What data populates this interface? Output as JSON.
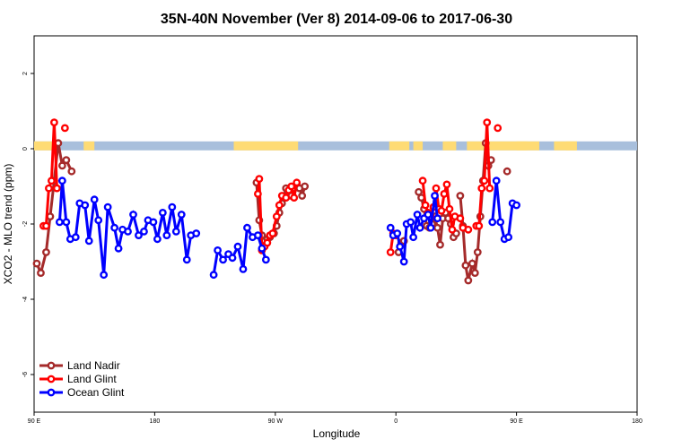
{
  "chart_data": {
    "type": "line",
    "title": "35N-40N November (Ver 8)   2014-09-06 to 2017-06-30",
    "xlabel": "Longitude",
    "ylabel": "XCO2 - MLO trend (ppm)",
    "xlim": [
      90,
      450
    ],
    "ylim": [
      -7,
      3
    ],
    "x_ticks": [
      {
        "value": 90,
        "label": "90 E"
      },
      {
        "value": 180,
        "label": "180"
      },
      {
        "value": 270,
        "label": "90 W"
      },
      {
        "value": 360,
        "label": "0"
      },
      {
        "value": 450,
        "label": "90 E"
      },
      {
        "value": 540,
        "label": "180"
      }
    ],
    "y_ticks": [
      {
        "value": 2,
        "label": "2"
      },
      {
        "value": 0,
        "label": "0"
      },
      {
        "value": -2,
        "label": "-2"
      },
      {
        "value": -4,
        "label": "-4"
      },
      {
        "value": -6,
        "label": "-6"
      }
    ],
    "legend_position": "bottom-left",
    "grid": false,
    "land_mask": {
      "y": 0.1,
      "ocean_color": "#a8bfdc",
      "land_color": "#fedb74",
      "land_ranges": [
        [
          90,
          107
        ],
        [
          127,
          135
        ],
        [
          239,
          287
        ],
        [
          355,
          370
        ],
        [
          373,
          380
        ],
        [
          395,
          405
        ],
        [
          413,
          458
        ],
        [
          478,
          495
        ]
      ]
    },
    "series": [
      {
        "name": "Land Nadir",
        "color": "#a52a2a",
        "x": [
          92,
          95,
          99,
          102,
          105,
          108,
          111,
          114,
          118,
          126
        ],
        "y": [
          -3.05,
          -3.3,
          -2.75,
          -1.8,
          -0.85,
          0.15,
          -0.45,
          -0.3,
          -0.6,
          null
        ]
      },
      {
        "name": "Land Nadir b",
        "color": "#a52a2a",
        "x": [
          256,
          258,
          260,
          262,
          264,
          266,
          269,
          271,
          273,
          275,
          278,
          280,
          282,
          284,
          286,
          288,
          290,
          292,
          362,
          364,
          366,
          368,
          370,
          377,
          379,
          381,
          383,
          385,
          387,
          389,
          391,
          393,
          395,
          397,
          399,
          401,
          403,
          405,
          408,
          410,
          412,
          414,
          417,
          419,
          421,
          423,
          425,
          427,
          429,
          431,
          434,
          436,
          438,
          440,
          442,
          444,
          446,
          448,
          450,
          452,
          454,
          456,
          458,
          461,
          463,
          465
        ],
        "y": [
          -0.9,
          -1.9,
          -2.3,
          -2.45,
          -2.4,
          -2.35,
          -2.25,
          -2.05,
          -1.7,
          -1.45,
          -1.05,
          -1.2,
          -1.25,
          -1.05,
          -0.95,
          -1.05,
          -1.25,
          -1.0,
          -2.75,
          -2.5,
          -2.45,
          -2.6,
          -2.7,
          -1.15,
          -1.3,
          -1.6,
          -2.05,
          -2.1,
          -2.0,
          -1.8,
          -2.1,
          -2.55,
          -1.85,
          -1.7,
          -1.85,
          -2.0,
          -2.35,
          -2.25,
          -1.25,
          -2.05,
          -3.1,
          -3.5,
          -3.05,
          -3.3,
          -2.75,
          -1.8,
          -0.85,
          0.15,
          -0.45,
          -0.3,
          null,
          null,
          null,
          null,
          null,
          null,
          null,
          null,
          null,
          null,
          null,
          null,
          null,
          null,
          null,
          null
        ]
      }
    ],
    "legend": [
      {
        "name": "Land Nadir",
        "color": "#a52a2a"
      },
      {
        "name": "Land Glint",
        "color": "#ff0000"
      },
      {
        "name": "Ocean Glint",
        "color": "#0000ff"
      }
    ]
  }
}
